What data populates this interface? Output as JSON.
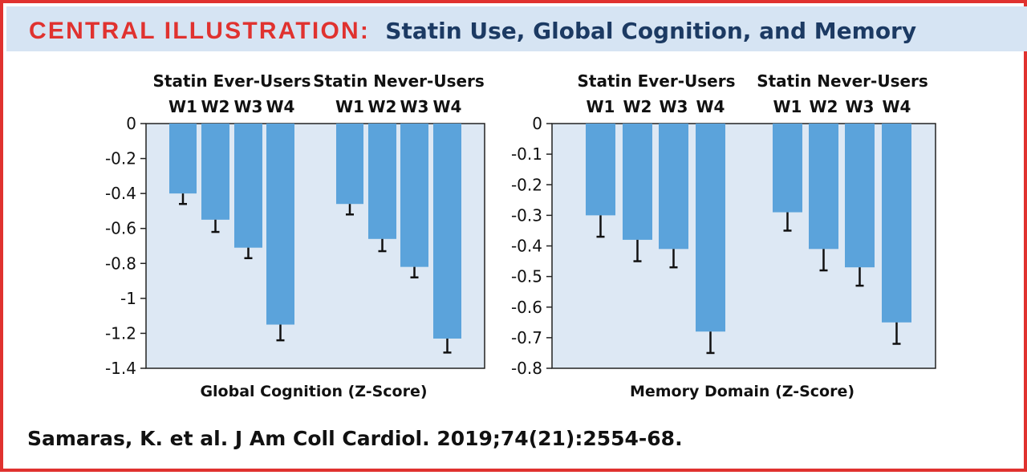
{
  "banner": {
    "label": "CENTRAL ILLUSTRATION:",
    "subject": "Statin Use, Global Cognition, and Memory"
  },
  "citation": "Samaras, K. et al. J Am Coll Cardiol. 2019;74(21):2554-68.",
  "colors": {
    "accent": "#e0322f",
    "banner_bg": "#d6e4f3",
    "title_text": "#1c3a63",
    "plot_bg": "#dde8f4",
    "bar": "#5ba3db",
    "error_bar": "#111111"
  },
  "chart_data": [
    {
      "type": "bar",
      "title": "",
      "xlabel": "Global Cognition (Z-Score)",
      "ylabel": "",
      "ylim": [
        -1.4,
        0
      ],
      "yticks": [
        0,
        -0.2,
        -0.4,
        -0.6,
        -0.8,
        -1,
        -1.2,
        -1.4
      ],
      "ytick_labels": [
        "0",
        "-0.2",
        "-0.4",
        "-0.6",
        "-0.8",
        "-1",
        "-1.2",
        "-1.4"
      ],
      "grid": false,
      "groups": [
        {
          "name": "Statin Ever-Users",
          "categories": [
            "W1",
            "W2",
            "W3",
            "W4"
          ],
          "values": [
            -0.4,
            -0.55,
            -0.71,
            -1.15
          ],
          "error_low": [
            -0.46,
            -0.62,
            -0.77,
            -1.24
          ]
        },
        {
          "name": "Statin Never-Users",
          "categories": [
            "W1",
            "W2",
            "W3",
            "W4"
          ],
          "values": [
            -0.46,
            -0.66,
            -0.82,
            -1.23
          ],
          "error_low": [
            -0.52,
            -0.73,
            -0.88,
            -1.31
          ]
        }
      ]
    },
    {
      "type": "bar",
      "title": "",
      "xlabel": "Memory Domain (Z-Score)",
      "ylabel": "",
      "ylim": [
        -0.8,
        0
      ],
      "yticks": [
        0,
        -0.1,
        -0.2,
        -0.3,
        -0.4,
        -0.5,
        -0.6,
        -0.7,
        -0.8
      ],
      "ytick_labels": [
        "0",
        "-0.1",
        "-0.2",
        "-0.3",
        "-0.4",
        "-0.5",
        "-0.6",
        "-0.7",
        "-0.8"
      ],
      "grid": false,
      "groups": [
        {
          "name": "Statin Ever-Users",
          "categories": [
            "W1",
            "W2",
            "W3",
            "W4"
          ],
          "values": [
            -0.3,
            -0.38,
            -0.41,
            -0.68
          ],
          "error_low": [
            -0.37,
            -0.45,
            -0.47,
            -0.75
          ]
        },
        {
          "name": "Statin Never-Users",
          "categories": [
            "W1",
            "W2",
            "W3",
            "W4"
          ],
          "values": [
            -0.29,
            -0.41,
            -0.47,
            -0.65
          ],
          "error_low": [
            -0.35,
            -0.48,
            -0.53,
            -0.72
          ]
        }
      ]
    }
  ]
}
